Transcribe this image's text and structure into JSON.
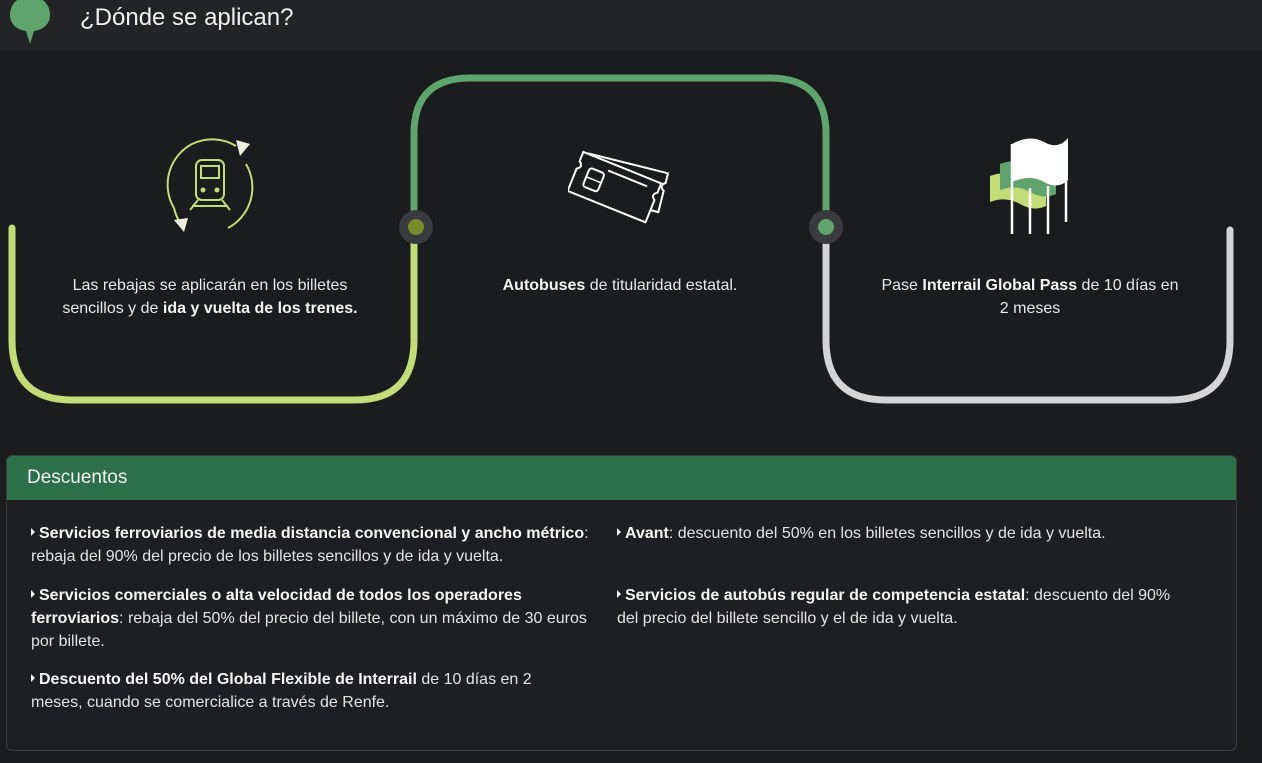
{
  "header": {
    "title": "¿Dónde se aplican?"
  },
  "steps": [
    {
      "icon": "train-cycle-icon",
      "pre": "Las rebajas se aplicarán en los billetes sencillos y de ",
      "bold": "ida y vuelta de los trenes.",
      "post": ""
    },
    {
      "icon": "bus-tickets-icon",
      "pre": "",
      "bold": "Autobuses",
      "post": " de titularidad estatal."
    },
    {
      "icon": "flags-icon",
      "pre": "Pase ",
      "bold": "Interrail Global Pass",
      "post": " de 10 días en 2 meses"
    }
  ],
  "descuentos": {
    "title": "Descuentos",
    "items": [
      {
        "bold": "Servicios ferroviarios de media distancia convencional y ancho métrico",
        "text": ": rebaja del 90% del precio de los billetes sencillos y de ida y vuelta."
      },
      {
        "bold": "Servicios comerciales o alta velocidad de todos los operadores ferroviarios",
        "text": ": rebaja del 50% del precio del billete, con un máximo de 30 euros por billete."
      },
      {
        "bold": "Descuento del 50% del Global Flexible de Interrail",
        "text": " de 10 días en 2 meses, cuando se comercialice a través de Renfe."
      },
      {
        "bold": "Avant",
        "text": ": descuento del 50% en los billetes sencillos y de ida y vuelta."
      },
      {
        "bold": "Servicios de autobús regular de competencia estatal",
        "text": ": descuento del 90% del precio del billete sencillo y el de ida y vuelta."
      }
    ]
  },
  "colors": {
    "lime": "#c3dc78",
    "green": "#5fa36d",
    "grey": "#d4d4d4",
    "header_green": "#2b7049",
    "background": "#1b1c1e"
  }
}
